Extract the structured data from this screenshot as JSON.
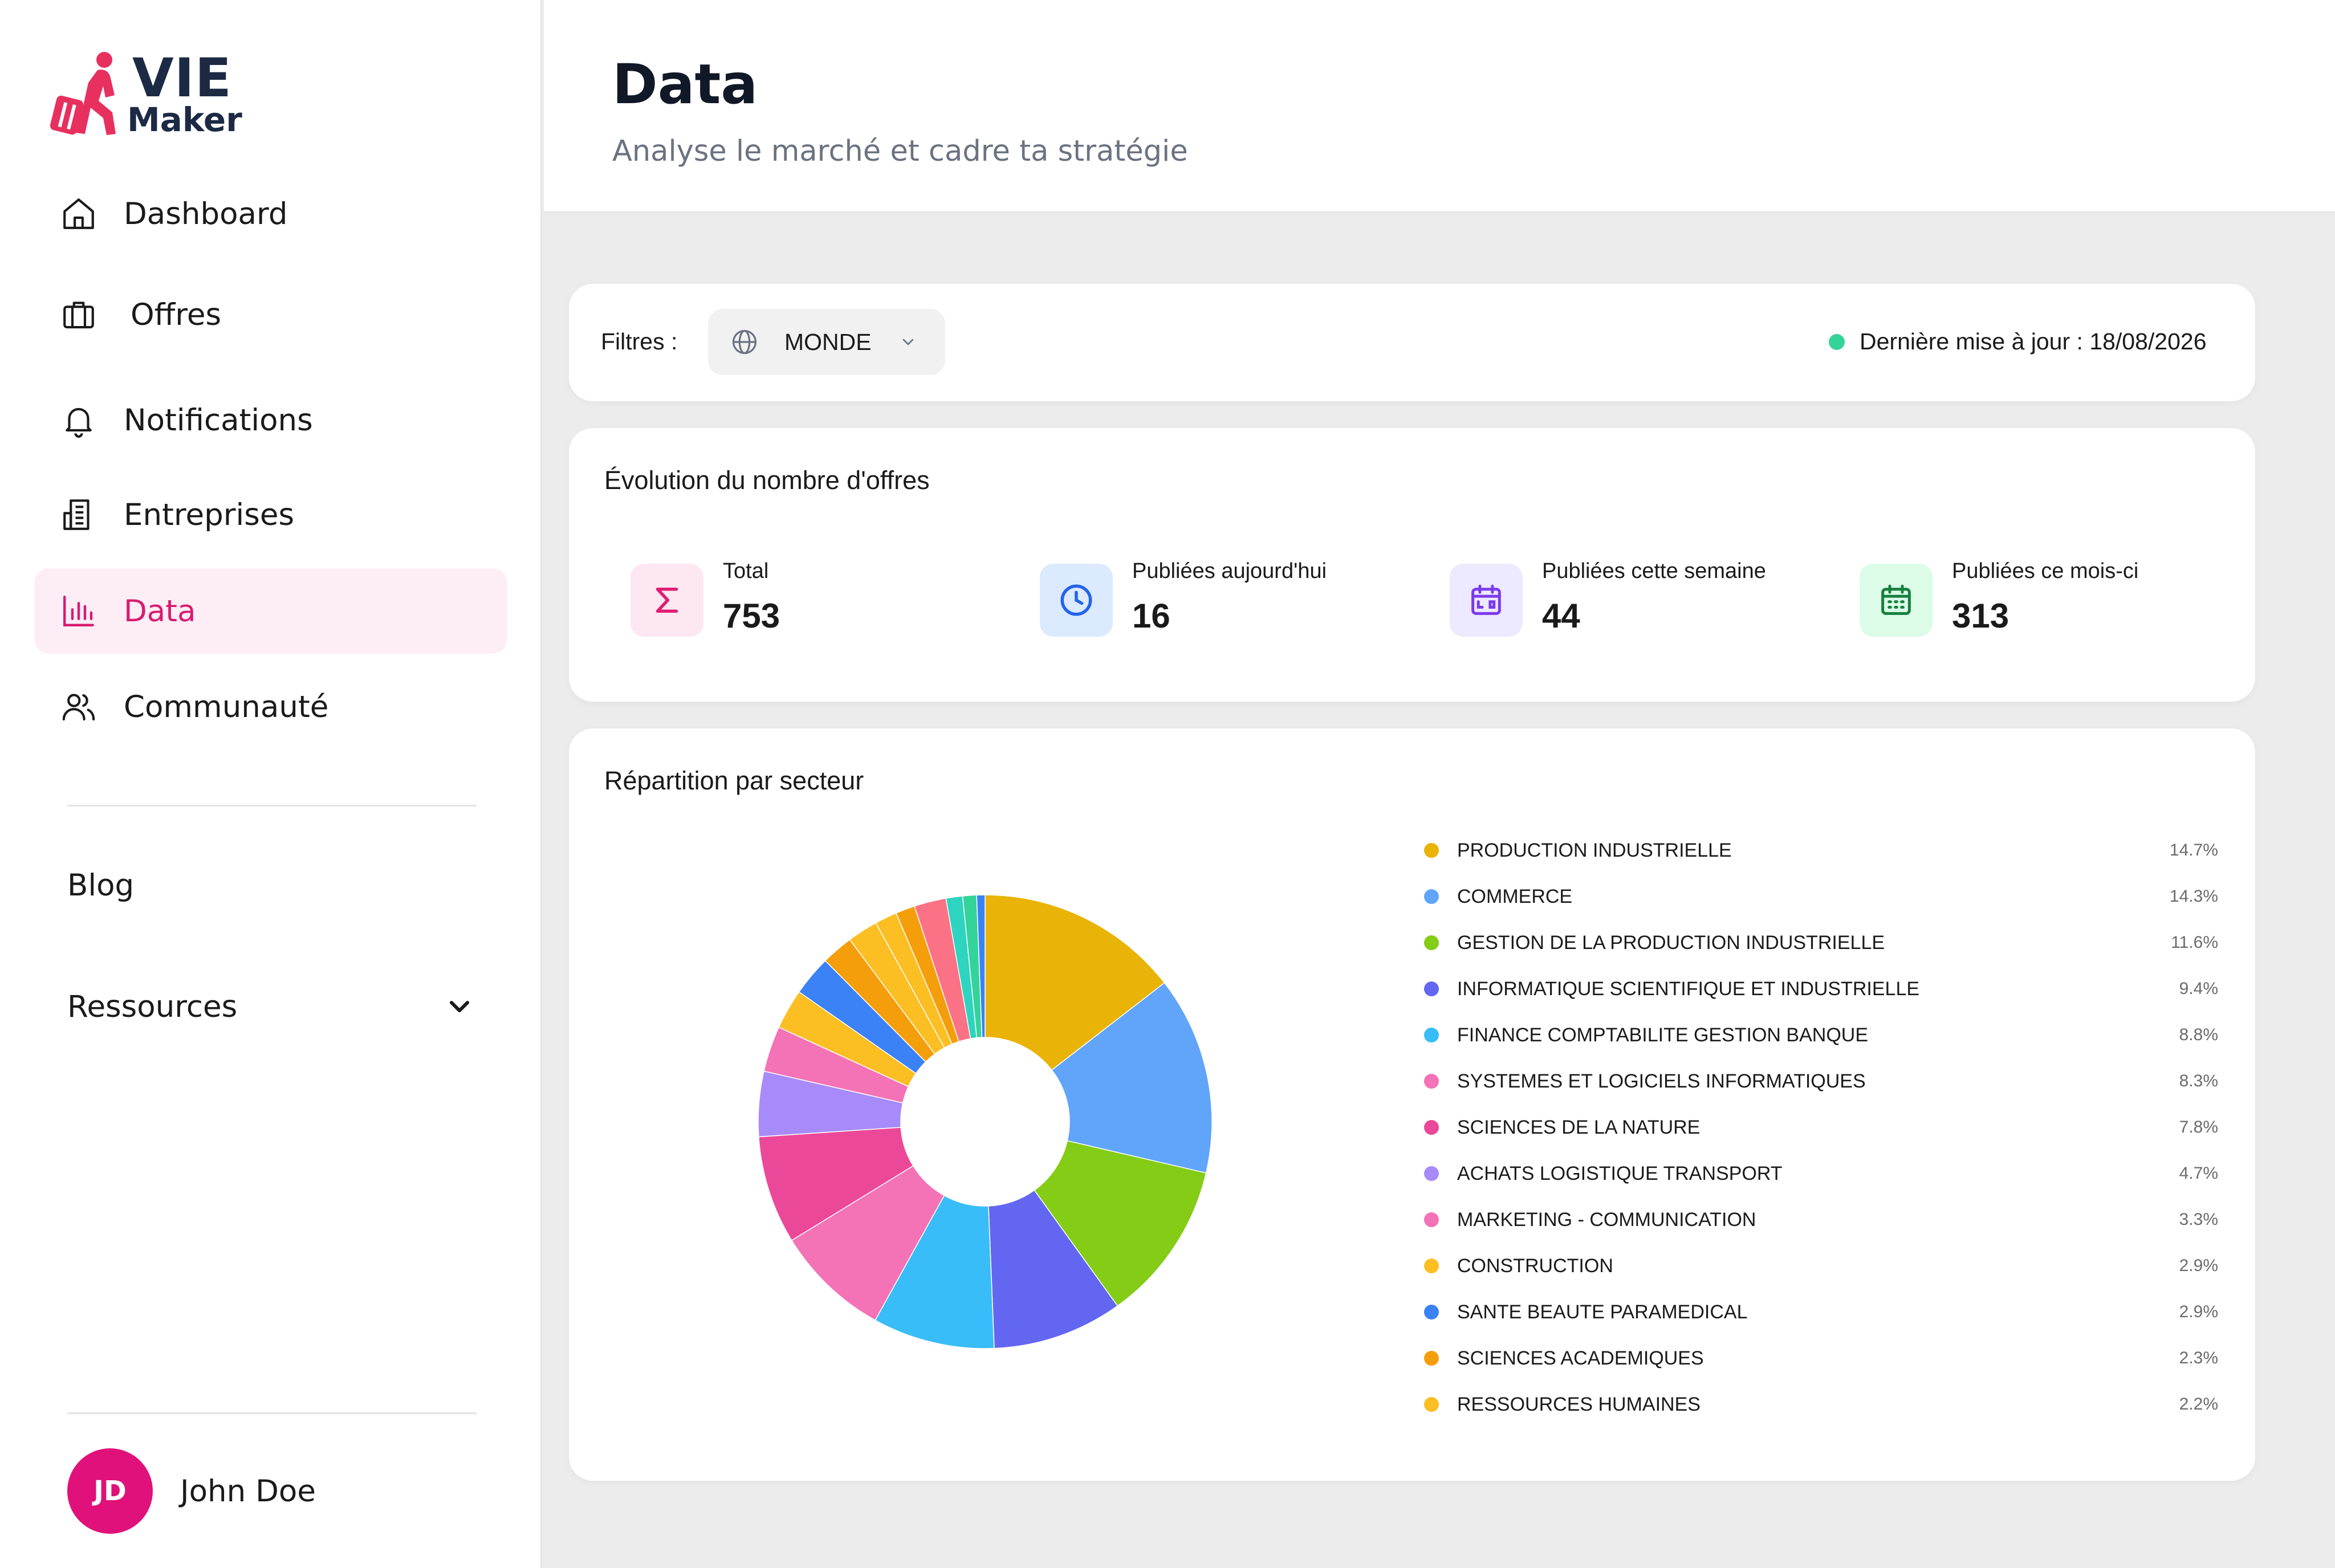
{
  "logo": {
    "line1": "VIE",
    "line2": "Maker",
    "brand_color": "#e8305f"
  },
  "sidebar": {
    "items": [
      {
        "label": "Dashboard",
        "icon": "home-icon"
      },
      {
        "label": "Offres",
        "icon": "briefcase-icon"
      },
      {
        "label": "Notifications",
        "icon": "bell-icon"
      },
      {
        "label": "Entreprises",
        "icon": "building-icon"
      },
      {
        "label": "Data",
        "icon": "bar-chart-icon",
        "active": true
      },
      {
        "label": "Communauté",
        "icon": "users-icon"
      }
    ],
    "blog": "Blog",
    "resources": "Ressources",
    "user": {
      "initials": "JD",
      "name": "John Doe"
    },
    "accent": "#d81b71"
  },
  "header": {
    "title": "Data",
    "subtitle": "Analyse le marché et cadre ta stratégie"
  },
  "filters": {
    "label": "Filtres :",
    "region": "MONDE",
    "last_update": "Dernière mise à jour : 18/08/2026",
    "status_color": "#34d399"
  },
  "kpis": {
    "title": "Évolution du nombre d'offres",
    "items": [
      {
        "label": "Total",
        "value": "753",
        "icon": "sigma-icon",
        "color": "#e11d74",
        "bg": "#fde7f1"
      },
      {
        "label": "Publiées aujourd'hui",
        "value": "16",
        "icon": "clock-icon",
        "color": "#2563eb",
        "bg": "#dbeafe"
      },
      {
        "label": "Publiées cette semaine",
        "value": "44",
        "icon": "calendar-week-icon",
        "color": "#7c3aed",
        "bg": "#ede9fe"
      },
      {
        "label": "Publiées ce mois-ci",
        "value": "313",
        "icon": "calendar-month-icon",
        "color": "#15803d",
        "bg": "#dcfce7"
      }
    ]
  },
  "chart_data": {
    "type": "pie",
    "title": "Répartition par secteur",
    "legend_position": "right",
    "categories": [
      "PRODUCTION INDUSTRIELLE",
      "COMMERCE",
      "GESTION DE LA PRODUCTION INDUSTRIELLE",
      "INFORMATIQUE SCIENTIFIQUE ET INDUSTRIELLE",
      "FINANCE COMPTABILITE GESTION BANQUE",
      "SYSTEMES ET LOGICIELS INFORMATIQUES",
      "SCIENCES DE LA NATURE",
      "ACHATS LOGISTIQUE TRANSPORT",
      "MARKETING - COMMUNICATION",
      "CONSTRUCTION",
      "SANTE BEAUTE PARAMEDICAL",
      "SCIENCES ACADEMIQUES",
      "RESSOURCES HUMAINES"
    ],
    "values": [
      14.7,
      14.3,
      11.6,
      9.4,
      8.8,
      8.3,
      7.8,
      4.7,
      3.3,
      2.9,
      2.9,
      2.3,
      2.2
    ],
    "labels": [
      "14.7%",
      "14.3%",
      "11.6%",
      "9.4%",
      "8.8%",
      "8.3%",
      "7.8%",
      "4.7%",
      "3.3%",
      "2.9%",
      "2.9%",
      "2.3%",
      "2.2%"
    ],
    "colors": [
      "#eab308",
      "#60a5fa",
      "#84cc16",
      "#6366f1",
      "#38bdf8",
      "#f472b6",
      "#ec4899",
      "#a78bfa",
      "#f472b6",
      "#fbbf24",
      "#3b82f6",
      "#f59e0b",
      "#fbbf24"
    ],
    "extra_unlabeled_values": [
      1.6,
      1.4,
      2.3,
      1.2,
      1.0,
      0.6
    ],
    "extra_unlabeled_colors": [
      "#fbbf24",
      "#f59e0b",
      "#fb7185",
      "#2dd4bf",
      "#34d399",
      "#3b82f6"
    ]
  }
}
